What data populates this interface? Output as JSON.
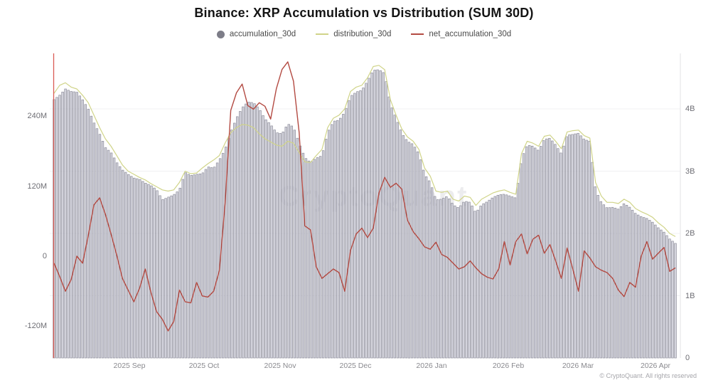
{
  "page": {
    "watermark": "CryptoQuant",
    "footer": "© CryptoQuant. All rights reserved"
  },
  "chart_data": {
    "type": "bar",
    "subtype": "bar+line combo, dual axis",
    "title": "Binance: XRP Accumulation vs Distribution (SUM 30D)",
    "legend_position": "top-center",
    "grid": "faint horizontal gridlines at right-axis integer ticks",
    "legend": [
      {
        "label": "accumulation_30d",
        "marker": "dot",
        "color": "#7d7d88",
        "axis": "right"
      },
      {
        "label": "distribution_30d",
        "marker": "line",
        "color": "#d0d489",
        "axis": "right"
      },
      {
        "label": "net_accumulation_30d",
        "marker": "line",
        "color": "#b34a42",
        "axis": "left"
      }
    ],
    "x_axis": {
      "tick_labels": [
        "2025 Sep",
        "2025 Oct",
        "2025 Nov",
        "2025 Dec",
        "2026 Jan",
        "2026 Feb",
        "2026 Mar",
        "2026 Apr"
      ],
      "note": "daily data, evenly spaced samples spanning mid-Aug 2025 to mid-Apr 2026"
    },
    "left_axis": {
      "unit": "M",
      "tick_labels": [
        "240M",
        "120M",
        "0",
        "-120M"
      ],
      "tick_values": [
        240,
        120,
        0,
        -120
      ],
      "applies_to": "net_accumulation_30d"
    },
    "right_axis": {
      "unit": "B",
      "tick_labels": [
        "4B",
        "3B",
        "2B",
        "1B",
        "0"
      ],
      "tick_values": [
        4,
        3,
        2,
        1,
        0
      ],
      "range": [
        0,
        4.9
      ],
      "applies_to": "accumulation_30d and distribution_30d"
    },
    "bar_color": {
      "fill": "#cdcdd7",
      "stroke": "#8e8e9b"
    },
    "axis_line_left_color": "#d95c55",
    "series": [
      {
        "name": "accumulation_30d",
        "type": "bar",
        "axis": "right",
        "unit": "B",
        "values": [
          4.15,
          4.22,
          4.32,
          4.28,
          4.27,
          4.15,
          4.0,
          3.78,
          3.6,
          3.38,
          3.3,
          3.14,
          3.02,
          2.95,
          2.89,
          2.87,
          2.81,
          2.77,
          2.7,
          2.54,
          2.58,
          2.62,
          2.7,
          2.98,
          2.93,
          2.95,
          2.96,
          3.07,
          3.05,
          3.18,
          3.35,
          3.63,
          3.85,
          4.02,
          4.11,
          4.1,
          4.0,
          3.84,
          3.75,
          3.62,
          3.6,
          3.76,
          3.71,
          3.45,
          3.22,
          3.14,
          3.21,
          3.25,
          3.62,
          3.8,
          3.82,
          3.95,
          4.2,
          4.27,
          4.3,
          4.45,
          4.62,
          4.63,
          4.57,
          4.08,
          3.85,
          3.61,
          3.48,
          3.43,
          3.28,
          2.95,
          2.82,
          2.54,
          2.55,
          2.6,
          2.46,
          2.41,
          2.52,
          2.5,
          2.33,
          2.46,
          2.51,
          2.58,
          2.62,
          2.63,
          2.6,
          2.57,
          3.2,
          3.42,
          3.4,
          3.33,
          3.51,
          3.53,
          3.42,
          3.28,
          3.58,
          3.59,
          3.61,
          3.51,
          3.48,
          2.7,
          2.5,
          2.41,
          2.42,
          2.39,
          2.48,
          2.42,
          2.32,
          2.27,
          2.24,
          2.18,
          2.09,
          2.02,
          1.91,
          1.84
        ]
      },
      {
        "name": "distribution_30d",
        "type": "line",
        "axis": "right",
        "unit": "B",
        "values": [
          4.25,
          4.38,
          4.42,
          4.35,
          4.32,
          4.22,
          4.1,
          3.9,
          3.7,
          3.52,
          3.4,
          3.25,
          3.1,
          3.0,
          2.95,
          2.9,
          2.86,
          2.8,
          2.75,
          2.7,
          2.68,
          2.7,
          2.82,
          3.0,
          2.96,
          2.97,
          3.05,
          3.12,
          3.18,
          3.25,
          3.45,
          3.62,
          3.7,
          3.75,
          3.74,
          3.7,
          3.6,
          3.52,
          3.47,
          3.42,
          3.4,
          3.48,
          3.45,
          3.3,
          3.15,
          3.14,
          3.25,
          3.35,
          3.7,
          3.85,
          3.9,
          4.0,
          4.28,
          4.35,
          4.38,
          4.5,
          4.68,
          4.7,
          4.63,
          4.15,
          3.9,
          3.68,
          3.55,
          3.48,
          3.35,
          3.05,
          2.92,
          2.68,
          2.66,
          2.68,
          2.55,
          2.52,
          2.6,
          2.58,
          2.45,
          2.55,
          2.6,
          2.65,
          2.68,
          2.7,
          2.66,
          2.63,
          3.28,
          3.48,
          3.45,
          3.4,
          3.56,
          3.58,
          3.48,
          3.36,
          3.63,
          3.65,
          3.66,
          3.57,
          3.53,
          2.82,
          2.6,
          2.5,
          2.5,
          2.48,
          2.55,
          2.5,
          2.4,
          2.35,
          2.31,
          2.26,
          2.17,
          2.1,
          2.0,
          1.95
        ]
      },
      {
        "name": "net_accumulation_30d",
        "type": "line",
        "axis": "left",
        "unit": "M",
        "values": [
          -12,
          -35,
          -60,
          -40,
          0,
          -12,
          35,
          88,
          100,
          72,
          38,
          2,
          -38,
          -58,
          -78,
          -55,
          -22,
          -62,
          -95,
          -108,
          -128,
          -112,
          -58,
          -78,
          -80,
          -45,
          -68,
          -70,
          -60,
          -25,
          90,
          250,
          280,
          295,
          258,
          252,
          263,
          257,
          235,
          287,
          320,
          333,
          300,
          212,
          52,
          45,
          -18,
          -38,
          -30,
          -22,
          -28,
          -60,
          10,
          38,
          48,
          32,
          48,
          108,
          135,
          118,
          125,
          115,
          62,
          42,
          30,
          16,
          12,
          24,
          3,
          -2,
          -12,
          -22,
          -18,
          -8,
          -20,
          -30,
          -36,
          -39,
          -22,
          25,
          -15,
          25,
          38,
          4,
          29,
          36,
          5,
          20,
          -8,
          -38,
          14,
          -22,
          -60,
          9,
          -3,
          -18,
          -24,
          -28,
          -38,
          -58,
          -69,
          -45,
          -53,
          0,
          25,
          -5,
          5,
          15,
          -26,
          -20
        ]
      }
    ]
  }
}
